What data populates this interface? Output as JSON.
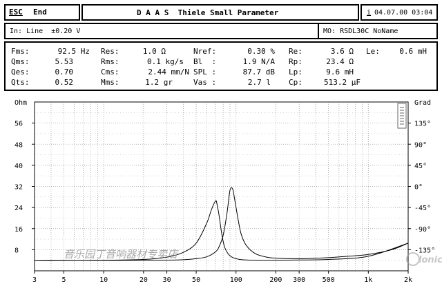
{
  "header": {
    "esc_label": "ESC",
    "end_label": "End",
    "title": "D A A S  Thiele Small Parameter",
    "date_marker": "i",
    "datetime": "04.07.00 03:04"
  },
  "input_bar": {
    "input_text": "In: Line  ±0.20 V",
    "model_text": "MO: RSDL30C NoName"
  },
  "parameters": [
    {
      "label": "Fms:",
      "value": "92.5 Hz"
    },
    {
      "label": "Res:",
      "value": "1.0 Ω"
    },
    {
      "label": "Nref:",
      "value": "0.30 %"
    },
    {
      "label": "Re:",
      "value": "3.6 Ω"
    },
    {
      "label": "Le:",
      "value": "0.6 mH"
    },
    {
      "label": "Qms:",
      "value": "5.53"
    },
    {
      "label": "Rms:",
      "value": "0.1 kg/s"
    },
    {
      "label": "Bl  :",
      "value": "1.9 N/A"
    },
    {
      "label": "Rp:",
      "value": "23.4 Ω"
    },
    {
      "label": "Qes:",
      "value": "0.70"
    },
    {
      "label": "Cms:",
      "value": "2.44 mm/N"
    },
    {
      "label": "SPL :",
      "value": "87.7 dB"
    },
    {
      "label": "Lp:",
      "value": "9.6 mH"
    },
    {
      "label": "Qts:",
      "value": "0.52"
    },
    {
      "label": "Mms:",
      "value": "1.2 gr"
    },
    {
      "label": "Vas :",
      "value": "2.7 l"
    },
    {
      "label": "Cp:",
      "value": "513.2 µF"
    }
  ],
  "chart_data": {
    "type": "line",
    "xscale": "log",
    "xlim": [
      3,
      2000
    ],
    "ylabel": "Ohm",
    "y2label": "Grad",
    "ylim": [
      0,
      64
    ],
    "y2lim": [
      -180,
      180
    ],
    "x_ticks": [
      "3",
      "5",
      "10",
      "20",
      "30",
      "50",
      "100",
      "200",
      "300",
      "500",
      "1k",
      "2k"
    ],
    "x_tick_values": [
      3,
      5,
      10,
      20,
      30,
      50,
      100,
      200,
      300,
      500,
      1000,
      2000
    ],
    "y_ticks": [
      "Ohm",
      "56",
      "48",
      "40",
      "32",
      "24",
      "16",
      "8"
    ],
    "y_tick_values": [
      64,
      56,
      48,
      40,
      32,
      24,
      16,
      8
    ],
    "y2_ticks": [
      "Grad",
      "135°",
      "90°",
      "45°",
      "0°",
      "-45°",
      "-90°",
      "-135°"
    ],
    "y2_tick_values": [
      180,
      135,
      90,
      45,
      0,
      -45,
      -90,
      -135
    ],
    "grid": true,
    "series": [
      {
        "color": "#000000",
        "x": [
          3,
          5,
          10,
          20,
          30,
          40,
          50,
          60,
          70,
          75,
          80,
          85,
          88,
          90,
          92.5,
          95,
          97,
          100,
          105,
          110,
          120,
          140,
          170,
          200,
          300,
          500,
          700,
          1000,
          1500,
          2000
        ],
        "y": [
          3.8,
          3.9,
          3.95,
          4.0,
          4.05,
          4.2,
          4.6,
          5.3,
          7.2,
          9.5,
          13.5,
          21,
          27,
          30.5,
          31.5,
          30.5,
          28,
          24,
          18,
          13.5,
          9.5,
          6.5,
          5.2,
          4.8,
          4.6,
          5.0,
          5.5,
          6.2,
          8.0,
          10.5
        ]
      },
      {
        "color": "#000000",
        "x": [
          3,
          5,
          10,
          20,
          30,
          40,
          50,
          60,
          65,
          70,
          72,
          75,
          78,
          82,
          88,
          95,
          105,
          120,
          150,
          200,
          300,
          500,
          1000,
          2000
        ],
        "y": [
          3.8,
          3.9,
          4.0,
          4.3,
          5.2,
          7.0,
          10.5,
          18,
          23,
          26.5,
          25,
          20,
          14,
          9.0,
          6.2,
          5.0,
          4.4,
          4.1,
          4.0,
          4.0,
          4.1,
          4.3,
          5.5,
          10.5
        ]
      }
    ]
  },
  "watermark": {
    "text": "音乐园丁音响器材专卖店",
    "logo_text": "lonic"
  }
}
